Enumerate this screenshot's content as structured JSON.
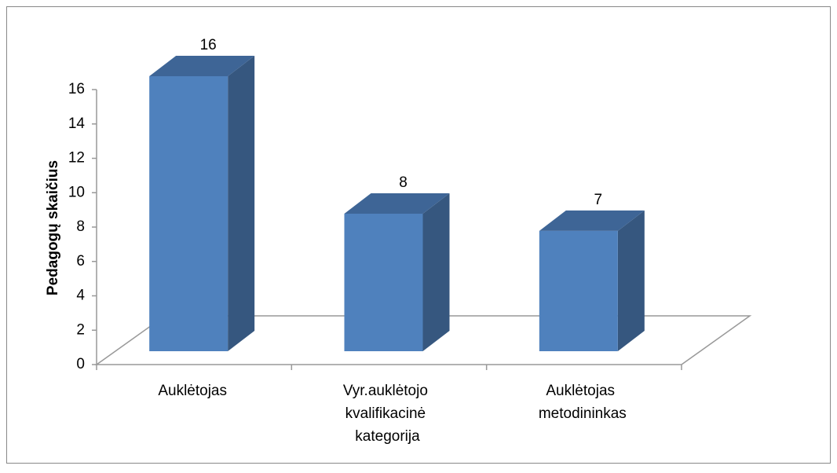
{
  "chart_data": {
    "type": "bar3d",
    "y_label": "Pedagogų skaičius",
    "categories": [
      "Auklėtojas",
      "Vyr.auklėtojo kvalifikacinė kategorija",
      "Auklėtojas metodininkas"
    ],
    "values": [
      16,
      8,
      7
    ],
    "color": "#4f81bd",
    "ylim": [
      0,
      16
    ],
    "yticks": [
      0,
      2,
      4,
      6,
      8,
      10,
      12,
      14,
      16
    ]
  }
}
